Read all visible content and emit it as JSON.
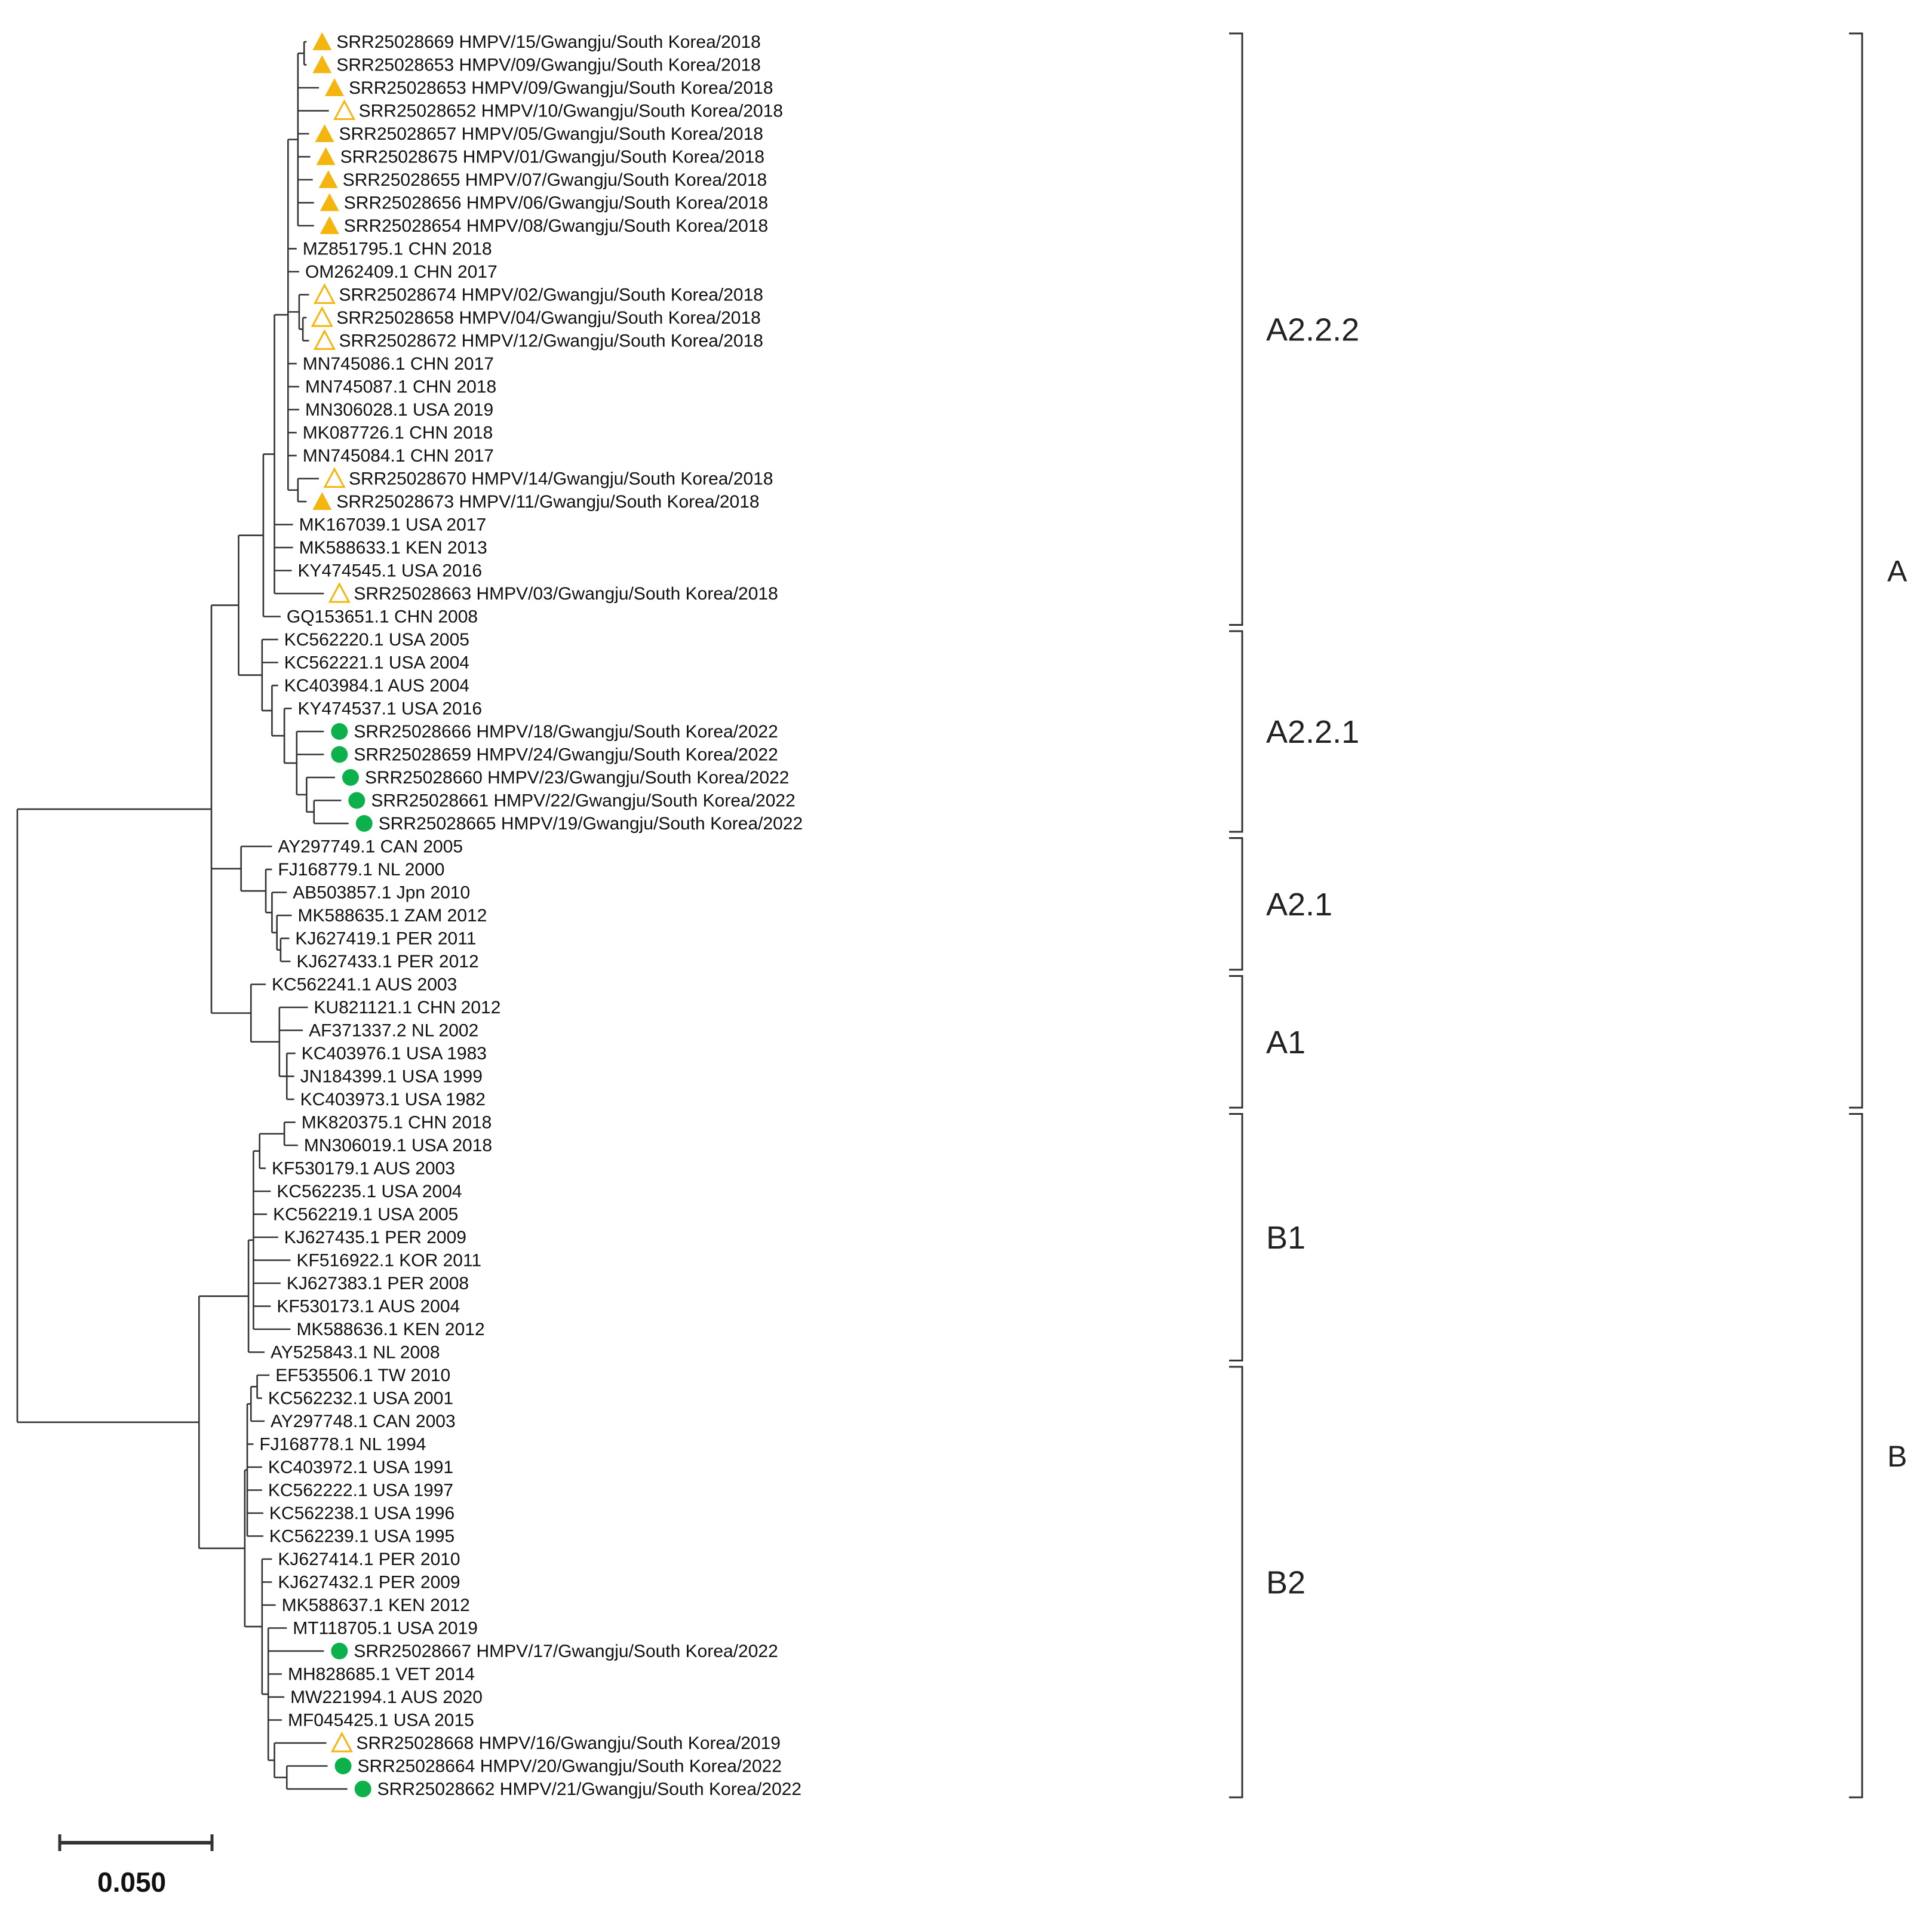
{
  "colors": {
    "filled_triangle": "#F5B50F",
    "open_triangle": "#F5B50F",
    "circle": "#0DB14B",
    "line": "#333333"
  },
  "leaves": [
    {
      "id": "L1",
      "label": "SRR25028669 HMPV/15/Gwangju/South Korea/2018",
      "marker": "filled-triangle"
    },
    {
      "id": "L2",
      "label": "SRR25028653 HMPV/09/Gwangju/South Korea/2018",
      "marker": "filled-triangle"
    },
    {
      "id": "L3",
      "label": "SRR25028653 HMPV/09/Gwangju/South Korea/2018",
      "marker": "filled-triangle"
    },
    {
      "id": "L4",
      "label": "SRR25028652 HMPV/10/Gwangju/South Korea/2018",
      "marker": "open-triangle"
    },
    {
      "id": "L5",
      "label": "SRR25028657 HMPV/05/Gwangju/South Korea/2018",
      "marker": "filled-triangle"
    },
    {
      "id": "L6",
      "label": "SRR25028675 HMPV/01/Gwangju/South Korea/2018",
      "marker": "filled-triangle"
    },
    {
      "id": "L7",
      "label": "SRR25028655 HMPV/07/Gwangju/South Korea/2018",
      "marker": "filled-triangle"
    },
    {
      "id": "L8",
      "label": "SRR25028656 HMPV/06/Gwangju/South Korea/2018",
      "marker": "filled-triangle"
    },
    {
      "id": "L9",
      "label": "SRR25028654 HMPV/08/Gwangju/South Korea/2018",
      "marker": "filled-triangle"
    },
    {
      "id": "L10",
      "label": "MZ851795.1 CHN 2018",
      "marker": "none"
    },
    {
      "id": "L11",
      "label": "OM262409.1 CHN 2017",
      "marker": "none"
    },
    {
      "id": "L12",
      "label": "SRR25028674 HMPV/02/Gwangju/South Korea/2018",
      "marker": "open-triangle"
    },
    {
      "id": "L13",
      "label": "SRR25028658 HMPV/04/Gwangju/South Korea/2018",
      "marker": "open-triangle"
    },
    {
      "id": "L14",
      "label": "SRR25028672 HMPV/12/Gwangju/South Korea/2018",
      "marker": "open-triangle"
    },
    {
      "id": "L15",
      "label": "MN745086.1 CHN 2017",
      "marker": "none"
    },
    {
      "id": "L16",
      "label": "MN745087.1 CHN 2018",
      "marker": "none"
    },
    {
      "id": "L17",
      "label": "MN306028.1 USA 2019",
      "marker": "none"
    },
    {
      "id": "L18",
      "label": "MK087726.1 CHN 2018",
      "marker": "none"
    },
    {
      "id": "L19",
      "label": "MN745084.1 CHN 2017",
      "marker": "none"
    },
    {
      "id": "L20",
      "label": "SRR25028670 HMPV/14/Gwangju/South Korea/2018",
      "marker": "open-triangle"
    },
    {
      "id": "L21",
      "label": "SRR25028673 HMPV/11/Gwangju/South Korea/2018",
      "marker": "filled-triangle"
    },
    {
      "id": "L22",
      "label": "MK167039.1 USA 2017",
      "marker": "none"
    },
    {
      "id": "L23",
      "label": "MK588633.1 KEN 2013",
      "marker": "none"
    },
    {
      "id": "L24",
      "label": "KY474545.1 USA 2016",
      "marker": "none"
    },
    {
      "id": "L25",
      "label": "SRR25028663 HMPV/03/Gwangju/South Korea/2018",
      "marker": "open-triangle"
    },
    {
      "id": "L26",
      "label": "GQ153651.1 CHN 2008",
      "marker": "none"
    },
    {
      "id": "L27",
      "label": "KC562220.1 USA 2005",
      "marker": "none"
    },
    {
      "id": "L28",
      "label": "KC562221.1 USA 2004",
      "marker": "none"
    },
    {
      "id": "L29",
      "label": "KC403984.1 AUS 2004",
      "marker": "none"
    },
    {
      "id": "L30",
      "label": "KY474537.1 USA 2016",
      "marker": "none"
    },
    {
      "id": "L31",
      "label": "SRR25028666 HMPV/18/Gwangju/South Korea/2022",
      "marker": "circle"
    },
    {
      "id": "L32",
      "label": "SRR25028659 HMPV/24/Gwangju/South Korea/2022",
      "marker": "circle"
    },
    {
      "id": "L33",
      "label": "SRR25028660 HMPV/23/Gwangju/South Korea/2022",
      "marker": "circle"
    },
    {
      "id": "L34",
      "label": "SRR25028661 HMPV/22/Gwangju/South Korea/2022",
      "marker": "circle"
    },
    {
      "id": "L35",
      "label": "SRR25028665 HMPV/19/Gwangju/South Korea/2022",
      "marker": "circle"
    },
    {
      "id": "L36",
      "label": "AY297749.1 CAN 2005",
      "marker": "none"
    },
    {
      "id": "L37",
      "label": "FJ168779.1 NL 2000",
      "marker": "none"
    },
    {
      "id": "L38",
      "label": "AB503857.1 Jpn 2010",
      "marker": "none"
    },
    {
      "id": "L39",
      "label": "MK588635.1 ZAM 2012",
      "marker": "none"
    },
    {
      "id": "L40",
      "label": "KJ627419.1 PER 2011",
      "marker": "none"
    },
    {
      "id": "L41",
      "label": "KJ627433.1 PER 2012",
      "marker": "none"
    },
    {
      "id": "L42",
      "label": "KC562241.1 AUS 2003",
      "marker": "none"
    },
    {
      "id": "L43",
      "label": "KU821121.1 CHN 2012",
      "marker": "none"
    },
    {
      "id": "L44",
      "label": "AF371337.2 NL 2002",
      "marker": "none"
    },
    {
      "id": "L45",
      "label": "KC403976.1 USA 1983",
      "marker": "none"
    },
    {
      "id": "L46",
      "label": "JN184399.1 USA 1999",
      "marker": "none"
    },
    {
      "id": "L47",
      "label": "KC403973.1 USA 1982",
      "marker": "none"
    },
    {
      "id": "L48",
      "label": "MK820375.1 CHN 2018",
      "marker": "none"
    },
    {
      "id": "L49",
      "label": "MN306019.1 USA 2018",
      "marker": "none"
    },
    {
      "id": "L50",
      "label": "KF530179.1 AUS 2003",
      "marker": "none"
    },
    {
      "id": "L51",
      "label": "KC562235.1 USA 2004",
      "marker": "none"
    },
    {
      "id": "L52",
      "label": "KC562219.1 USA 2005",
      "marker": "none"
    },
    {
      "id": "L53",
      "label": "KJ627435.1 PER 2009",
      "marker": "none"
    },
    {
      "id": "L54",
      "label": "KF516922.1 KOR 2011",
      "marker": "none"
    },
    {
      "id": "L55",
      "label": "KJ627383.1 PER 2008",
      "marker": "none"
    },
    {
      "id": "L56",
      "label": "KF530173.1 AUS 2004",
      "marker": "none"
    },
    {
      "id": "L57",
      "label": "MK588636.1 KEN 2012",
      "marker": "none"
    },
    {
      "id": "L58",
      "label": "AY525843.1 NL 2008",
      "marker": "none"
    },
    {
      "id": "L59",
      "label": "EF535506.1 TW 2010",
      "marker": "none"
    },
    {
      "id": "L60",
      "label": "KC562232.1 USA 2001",
      "marker": "none"
    },
    {
      "id": "L61",
      "label": "AY297748.1 CAN 2003",
      "marker": "none"
    },
    {
      "id": "L62",
      "label": "FJ168778.1 NL 1994",
      "marker": "none"
    },
    {
      "id": "L63",
      "label": "KC403972.1 USA 1991",
      "marker": "none"
    },
    {
      "id": "L64",
      "label": "KC562222.1 USA 1997",
      "marker": "none"
    },
    {
      "id": "L65",
      "label": "KC562238.1 USA 1996",
      "marker": "none"
    },
    {
      "id": "L66",
      "label": "KC562239.1 USA 1995",
      "marker": "none"
    },
    {
      "id": "L67",
      "label": "KJ627414.1 PER 2010",
      "marker": "none"
    },
    {
      "id": "L68",
      "label": "KJ627432.1 PER 2009",
      "marker": "none"
    },
    {
      "id": "L69",
      "label": "MK588637.1 KEN 2012",
      "marker": "none"
    },
    {
      "id": "L70",
      "label": "MT118705.1 USA 2019",
      "marker": "none"
    },
    {
      "id": "L71",
      "label": "SRR25028667 HMPV/17/Gwangju/South Korea/2022",
      "marker": "circle"
    },
    {
      "id": "L72",
      "label": "MH828685.1 VET 2014",
      "marker": "none"
    },
    {
      "id": "L73",
      "label": "MW221994.1 AUS 2020",
      "marker": "none"
    },
    {
      "id": "L74",
      "label": "MF045425.1 USA 2015",
      "marker": "none"
    },
    {
      "id": "L75",
      "label": "SRR25028668 HMPV/16/Gwangju/South Korea/2019",
      "marker": "open-triangle"
    },
    {
      "id": "L76",
      "label": "SRR25028664 HMPV/20/Gwangju/South Korea/2022",
      "marker": "circle"
    },
    {
      "id": "L77",
      "label": "SRR25028662 HMPV/21/Gwangju/South Korea/2022",
      "marker": "circle"
    }
  ],
  "subclades": [
    {
      "label": "A2.2.2",
      "from": 1,
      "to": 26
    },
    {
      "label": "A2.2.1",
      "from": 27,
      "to": 35
    },
    {
      "label": "A2.1",
      "from": 36,
      "to": 41
    },
    {
      "label": "A1",
      "from": 42,
      "to": 47
    },
    {
      "label": "B1",
      "from": 48,
      "to": 58
    },
    {
      "label": "B2",
      "from": 59,
      "to": 77
    }
  ],
  "groups": [
    {
      "label": "A",
      "from": 1,
      "to": 47
    },
    {
      "label": "B",
      "from": 48,
      "to": 77
    }
  ],
  "scale_bar": {
    "label": "0.050",
    "value": 0.05
  }
}
